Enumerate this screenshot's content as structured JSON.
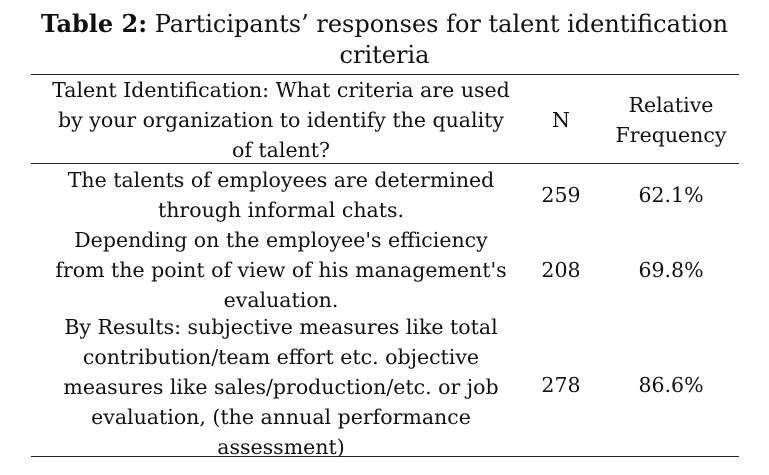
{
  "caption": {
    "label": "Table 2:",
    "title_line1": "Participants’ responses for talent identification",
    "title_line2": "criteria"
  },
  "table": {
    "headers": {
      "question": [
        "Talent Identification: What criteria are used",
        "by your organization to identify the quality",
        "of talent?"
      ],
      "n": "N",
      "relative_frequency": [
        "Relative",
        "Frequency"
      ]
    },
    "rows": [
      {
        "criterion": [
          "The talents of employees are determined",
          "through informal chats."
        ],
        "n": "259",
        "relative_frequency": "62.1%"
      },
      {
        "criterion": [
          "Depending on the employee's efficiency",
          "from the point of view of his management's",
          "evaluation."
        ],
        "n": "208",
        "relative_frequency": "69.8%"
      },
      {
        "criterion": [
          "By Results: subjective measures like total",
          "contribution/team effort etc. objective",
          "measures like sales/production/etc. or job",
          "evaluation, (the annual performance",
          "assessment)"
        ],
        "n": "278",
        "relative_frequency": "86.6%"
      }
    ]
  }
}
